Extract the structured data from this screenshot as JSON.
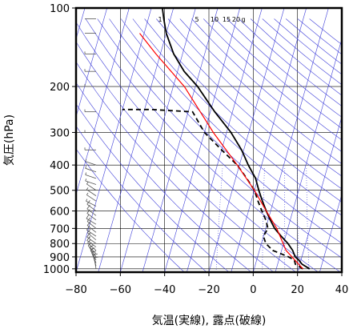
{
  "chart_data": {
    "type": "line",
    "diagram": "skew-T log-P",
    "xlabel": "気温(実線), 露点(破線)",
    "ylabel": "気圧(hPa)",
    "xlim": [
      -80,
      40
    ],
    "ylim": [
      1030,
      100
    ],
    "y_scale": "log",
    "x_ticks": [
      "−80",
      "−60",
      "−40",
      "−20",
      "0",
      "20",
      "40"
    ],
    "x_tick_values": [
      -80,
      -60,
      -40,
      -20,
      0,
      20,
      40
    ],
    "y_ticks": [
      "100",
      "200",
      "300",
      "400",
      "500",
      "600",
      "700",
      "800",
      "900",
      "1000"
    ],
    "y_tick_values": [
      100,
      200,
      300,
      400,
      500,
      600,
      700,
      800,
      900,
      1000
    ],
    "mixing_ratio_labels": [
      "1",
      "5",
      "10",
      "15",
      "20",
      "g"
    ],
    "mixing_ratio_values": [
      1,
      5,
      10,
      15,
      20
    ],
    "series": [
      {
        "style": "solid",
        "color": "#000000",
        "points": [
          [
            25,
            1000
          ],
          [
            21,
            960
          ],
          [
            19,
            925
          ],
          [
            17,
            900
          ],
          [
            15,
            850
          ],
          [
            12,
            800
          ],
          [
            8,
            750
          ],
          [
            4,
            700
          ],
          [
            1,
            650
          ],
          [
            -2,
            600
          ],
          [
            -5,
            550
          ],
          [
            -8,
            500
          ],
          [
            -11,
            450
          ],
          [
            -16,
            400
          ],
          [
            -21,
            350
          ],
          [
            -28,
            300
          ],
          [
            -38,
            250
          ],
          [
            -49,
            200
          ],
          [
            -57,
            175
          ],
          [
            -64,
            150
          ],
          [
            -70,
            125
          ],
          [
            -73,
            110
          ],
          [
            -75,
            100
          ]
        ]
      },
      {
        "style": "dashed",
        "color": "#000000",
        "points": [
          [
            22,
            1000
          ],
          [
            18,
            960
          ],
          [
            17,
            925
          ],
          [
            14,
            900
          ],
          [
            6,
            850
          ],
          [
            2,
            800
          ],
          [
            0,
            750
          ],
          [
            1,
            700
          ],
          [
            -1,
            650
          ],
          [
            -4,
            600
          ],
          [
            -7,
            550
          ],
          [
            -10,
            500
          ],
          [
            -15,
            450
          ],
          [
            -21,
            400
          ],
          [
            -30,
            350
          ],
          [
            -40,
            300
          ],
          [
            -48,
            250
          ],
          [
            -67,
            245
          ],
          [
            -80,
            245
          ]
        ]
      },
      {
        "style": "solid",
        "color": "#ff0000",
        "points": [
          [
            22,
            1000
          ],
          [
            12,
            850
          ],
          [
            5,
            700
          ],
          [
            -2,
            600
          ],
          [
            -10,
            500
          ],
          [
            -21,
            400
          ],
          [
            -36,
            300
          ],
          [
            -55,
            200
          ],
          [
            -72,
            150
          ],
          [
            -82,
            125
          ]
        ]
      }
    ],
    "wind_barbs": [
      {
        "p": 1000,
        "u": -2,
        "v": 12
      },
      {
        "p": 975,
        "u": -4,
        "v": 14
      },
      {
        "p": 950,
        "u": -6,
        "v": 14
      },
      {
        "p": 925,
        "u": -8,
        "v": 14
      },
      {
        "p": 900,
        "u": -10,
        "v": 14
      },
      {
        "p": 875,
        "u": -12,
        "v": 12
      },
      {
        "p": 850,
        "u": -14,
        "v": 12
      },
      {
        "p": 825,
        "u": -14,
        "v": 10
      },
      {
        "p": 800,
        "u": -14,
        "v": 10
      },
      {
        "p": 775,
        "u": -12,
        "v": 10
      },
      {
        "p": 750,
        "u": -12,
        "v": 8
      },
      {
        "p": 725,
        "u": -10,
        "v": 8
      },
      {
        "p": 700,
        "u": -10,
        "v": 8
      },
      {
        "p": 675,
        "u": -10,
        "v": 6
      },
      {
        "p": 650,
        "u": -8,
        "v": 6
      },
      {
        "p": 625,
        "u": -8,
        "v": 6
      },
      {
        "p": 600,
        "u": -8,
        "v": 6
      },
      {
        "p": 575,
        "u": -8,
        "v": 4
      },
      {
        "p": 550,
        "u": -6,
        "v": 4
      },
      {
        "p": 525,
        "u": -6,
        "v": 4
      },
      {
        "p": 500,
        "u": -6,
        "v": 4
      },
      {
        "p": 475,
        "u": -6,
        "v": 2
      },
      {
        "p": 450,
        "u": -6,
        "v": 2
      },
      {
        "p": 425,
        "u": -6,
        "v": 2
      },
      {
        "p": 400,
        "u": -6,
        "v": 2
      },
      {
        "p": 350,
        "u": -6,
        "v": 0
      },
      {
        "p": 300,
        "u": -6,
        "v": 0
      },
      {
        "p": 250,
        "u": -8,
        "v": 0
      },
      {
        "p": 200,
        "u": -8,
        "v": 0
      },
      {
        "p": 175,
        "u": -6,
        "v": 0
      },
      {
        "p": 150,
        "u": -6,
        "v": 0
      },
      {
        "p": 125,
        "u": -4,
        "v": 0
      },
      {
        "p": 110,
        "u": -4,
        "v": 0
      },
      {
        "p": 100,
        "u": -2,
        "v": 0
      }
    ],
    "colors": {
      "isotherm": "#3f3fd9",
      "adiabat": "#3f3fd9",
      "grid": "#000000",
      "parcel": "#ff0000"
    }
  }
}
